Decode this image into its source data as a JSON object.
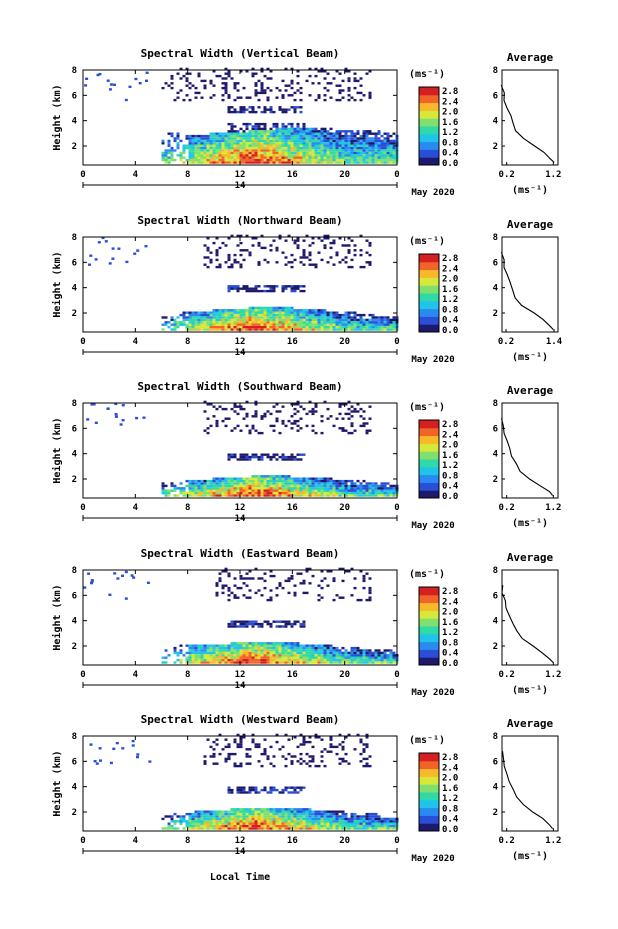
{
  "chart_data": [
    {
      "type": "heatmap",
      "title": "Spectral Width (Vertical Beam)",
      "ylabel": "Height (km)",
      "date_label": "14",
      "month_label": "May 2020",
      "x_ticks": [
        "0",
        "4",
        "8",
        "12",
        "16",
        "20",
        "0"
      ],
      "y_ticks": [
        "2",
        "4",
        "6",
        "8"
      ],
      "xlim": [
        0,
        24
      ],
      "ylim": [
        0.5,
        8
      ],
      "colorbar": {
        "unit": "(ms⁻¹)",
        "ticks": [
          "0.0",
          "0.4",
          "0.8",
          "1.2",
          "1.6",
          "2.0",
          "2.4",
          "2.8"
        ]
      },
      "average": {
        "title": "Average",
        "xlabel": "(ms⁻¹)",
        "x_ticks": [
          "0.2",
          "1.2"
        ],
        "xlim": [
          0.1,
          1.3
        ],
        "y_ticks": [
          "2",
          "4",
          "6",
          "8"
        ],
        "profile": [
          [
            1.2,
            0.7
          ],
          [
            1.15,
            1.0
          ],
          [
            1.0,
            1.5
          ],
          [
            0.8,
            2.0
          ],
          [
            0.55,
            2.6
          ],
          [
            0.4,
            3.2
          ],
          [
            0.33,
            3.8
          ],
          [
            0.28,
            4.4
          ],
          [
            0.2,
            5.0
          ],
          [
            0.15,
            5.6
          ],
          [
            0.13,
            6.2
          ],
          [
            0.1,
            6.8
          ]
        ]
      }
    },
    {
      "type": "heatmap",
      "title": "Spectral Width (Northward Beam)",
      "ylabel": "Height (km)",
      "date_label": "14",
      "month_label": "May 2020",
      "x_ticks": [
        "0",
        "4",
        "8",
        "12",
        "16",
        "20",
        "0"
      ],
      "y_ticks": [
        "2",
        "4",
        "6",
        "8"
      ],
      "xlim": [
        0,
        24
      ],
      "ylim": [
        0.5,
        8
      ],
      "colorbar": {
        "unit": "(ms⁻¹)",
        "ticks": [
          "0.0",
          "0.4",
          "0.8",
          "1.2",
          "1.6",
          "2.0",
          "2.4",
          "2.8"
        ]
      },
      "average": {
        "title": "Average",
        "xlabel": "(ms⁻¹)",
        "x_ticks": [
          "0.2",
          "1.4"
        ],
        "xlim": [
          0.1,
          1.5
        ],
        "y_ticks": [
          "2",
          "4",
          "6",
          "8"
        ],
        "profile": [
          [
            1.4,
            0.7
          ],
          [
            1.3,
            1.0
          ],
          [
            1.1,
            1.5
          ],
          [
            0.9,
            2.0
          ],
          [
            0.6,
            2.6
          ],
          [
            0.45,
            3.2
          ],
          [
            0.35,
            3.8
          ],
          [
            0.3,
            4.4
          ],
          [
            0.22,
            5.0
          ],
          [
            0.17,
            5.6
          ],
          [
            0.14,
            6.2
          ],
          [
            0.1,
            6.8
          ]
        ]
      }
    },
    {
      "type": "heatmap",
      "title": "Spectral Width (Southward Beam)",
      "ylabel": "Height (km)",
      "date_label": "14",
      "month_label": "May 2020",
      "x_ticks": [
        "0",
        "4",
        "8",
        "12",
        "16",
        "20",
        "0"
      ],
      "y_ticks": [
        "2",
        "4",
        "6",
        "8"
      ],
      "xlim": [
        0,
        24
      ],
      "ylim": [
        0.5,
        8
      ],
      "colorbar": {
        "unit": "(ms⁻¹)",
        "ticks": [
          "0.0",
          "0.4",
          "0.8",
          "1.2",
          "1.6",
          "2.0",
          "2.4",
          "2.8"
        ]
      },
      "average": {
        "title": "Average",
        "xlabel": "(ms⁻¹)",
        "x_ticks": [
          "0.2",
          "1.2"
        ],
        "xlim": [
          0.1,
          1.3
        ],
        "y_ticks": [
          "2",
          "4",
          "6",
          "8"
        ],
        "profile": [
          [
            1.2,
            0.7
          ],
          [
            1.1,
            1.0
          ],
          [
            0.9,
            1.5
          ],
          [
            0.7,
            2.0
          ],
          [
            0.5,
            2.6
          ],
          [
            0.4,
            3.2
          ],
          [
            0.32,
            3.8
          ],
          [
            0.27,
            4.4
          ],
          [
            0.2,
            5.0
          ],
          [
            0.15,
            5.6
          ],
          [
            0.12,
            6.2
          ],
          [
            0.1,
            6.8
          ]
        ]
      }
    },
    {
      "type": "heatmap",
      "title": "Spectral Width (Eastward Beam)",
      "ylabel": "Height (km)",
      "date_label": "14",
      "month_label": "May 2020",
      "x_ticks": [
        "0",
        "4",
        "8",
        "12",
        "16",
        "20",
        "0"
      ],
      "y_ticks": [
        "2",
        "4",
        "6",
        "8"
      ],
      "xlim": [
        0,
        24
      ],
      "ylim": [
        0.5,
        8
      ],
      "colorbar": {
        "unit": "(ms⁻¹)",
        "ticks": [
          "0.0",
          "0.4",
          "0.8",
          "1.2",
          "1.6",
          "2.0",
          "2.4",
          "2.8"
        ]
      },
      "average": {
        "title": "Average",
        "xlabel": "(ms⁻¹)",
        "x_ticks": [
          "0.2",
          "1.2"
        ],
        "xlim": [
          0.1,
          1.3
        ],
        "y_ticks": [
          "2",
          "4",
          "6",
          "8"
        ],
        "profile": [
          [
            1.2,
            0.7
          ],
          [
            1.1,
            1.0
          ],
          [
            0.95,
            1.5
          ],
          [
            0.75,
            2.0
          ],
          [
            0.55,
            2.6
          ],
          [
            0.42,
            3.2
          ],
          [
            0.33,
            3.8
          ],
          [
            0.27,
            4.4
          ],
          [
            0.2,
            5.0
          ],
          [
            0.15,
            5.6
          ],
          [
            0.12,
            6.2
          ],
          [
            0.1,
            6.8
          ]
        ]
      }
    },
    {
      "type": "heatmap",
      "title": "Spectral Width (Westward Beam)",
      "ylabel": "Height (km)",
      "date_label": "14",
      "month_label": "May 2020",
      "x_ticks": [
        "0",
        "4",
        "8",
        "12",
        "16",
        "20",
        "0"
      ],
      "y_ticks": [
        "2",
        "4",
        "6",
        "8"
      ],
      "xlim": [
        0,
        24
      ],
      "ylim": [
        0.5,
        8
      ],
      "colorbar": {
        "unit": "(ms⁻¹)",
        "ticks": [
          "0.0",
          "0.4",
          "0.8",
          "1.2",
          "1.6",
          "2.0",
          "2.4",
          "2.8"
        ]
      },
      "average": {
        "title": "Average",
        "xlabel": "(ms⁻¹)",
        "x_ticks": [
          "0.2",
          "1.2"
        ],
        "xlim": [
          0.1,
          1.3
        ],
        "y_ticks": [
          "2",
          "4",
          "6",
          "8"
        ],
        "profile": [
          [
            1.2,
            0.7
          ],
          [
            1.1,
            1.0
          ],
          [
            0.95,
            1.5
          ],
          [
            0.75,
            2.0
          ],
          [
            0.55,
            2.6
          ],
          [
            0.42,
            3.2
          ],
          [
            0.33,
            3.8
          ],
          [
            0.27,
            4.4
          ],
          [
            0.2,
            5.0
          ],
          [
            0.15,
            5.6
          ],
          [
            0.12,
            6.2
          ],
          [
            0.1,
            6.8
          ]
        ]
      }
    }
  ],
  "xlabel": "Local Time",
  "colormap": [
    "#1d1a6e",
    "#2a4fd6",
    "#2a8af0",
    "#20c4e8",
    "#2fd9a8",
    "#7fe070",
    "#d8e83a",
    "#f7b92a",
    "#f0642a",
    "#d42020"
  ]
}
